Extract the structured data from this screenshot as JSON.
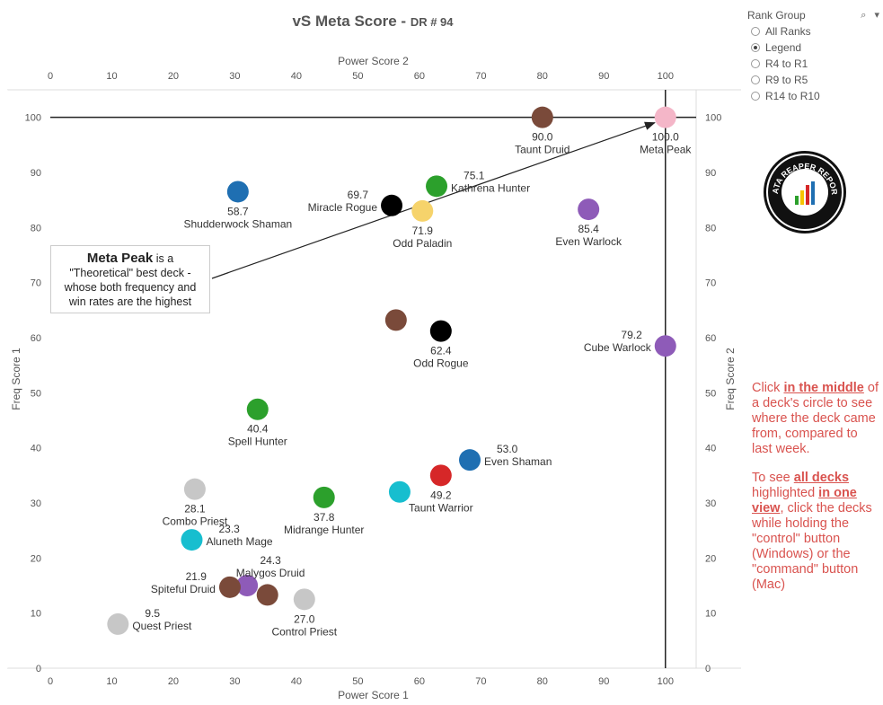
{
  "title": {
    "main": "vS Meta Score",
    "sub": "DR # 94"
  },
  "legend": {
    "title": "Rank Group",
    "tools": "⌕ ▾",
    "items": [
      {
        "label": "All Ranks",
        "selected": false
      },
      {
        "label": "Legend",
        "selected": true
      },
      {
        "label": "R4 to R1",
        "selected": false
      },
      {
        "label": "R9 to R5",
        "selected": false
      },
      {
        "label": "R14 to R10",
        "selected": false
      }
    ]
  },
  "callout": {
    "bold": "Meta Peak",
    "rest1": " is a",
    "rest2": "\"Theoretical\" best deck -",
    "rest3": "whose both frequency and",
    "rest4": "win rates are the highest"
  },
  "note": {
    "p1_a": "Click ",
    "p1_b": "in the middle",
    "p1_c": " of a deck's circle to see where the deck came from, compared to last week.",
    "p2_a": "To see ",
    "p2_b": "all decks ",
    "p2_c": " highlighted ",
    "p2_d": "in one view",
    "p2_e": ", click the decks while holding the \"control\" button (Windows) or the \"command\" button (Mac)"
  },
  "logo": {
    "text": "DATA REAPER REPORT"
  },
  "chart_data": {
    "type": "scatter",
    "x_bottom_label": "Power Score 1",
    "x_top_label": "Power Score 2",
    "y_left_label": "Freq Score 1",
    "y_right_label": "Freq Score 2",
    "xlim": [
      0,
      105
    ],
    "ylim": [
      0,
      105
    ],
    "xticks": [
      0,
      10,
      20,
      30,
      40,
      50,
      60,
      70,
      80,
      90,
      100
    ],
    "yticks": [
      0,
      10,
      20,
      30,
      40,
      50,
      60,
      70,
      80,
      90,
      100
    ],
    "reference_lines": {
      "x": 100,
      "y": 100
    },
    "points": [
      {
        "name": "Taunt Druid",
        "value": "90.0",
        "x": 80,
        "y": 100,
        "color": "#7a4a3a",
        "label_pos": "below"
      },
      {
        "name": "Meta Peak",
        "value": "100.0",
        "x": 100,
        "y": 100,
        "color": "#f4b6c8",
        "label_pos": "below"
      },
      {
        "name": "Shudderwock Shaman",
        "value": "58.7",
        "x": 30.5,
        "y": 86.5,
        "color": "#1f6fb2",
        "label_pos": "below"
      },
      {
        "name": "Kathrena Hunter",
        "value": "75.1",
        "x": 62.8,
        "y": 87.5,
        "color": "#2ca02c",
        "label_pos": "right"
      },
      {
        "name": "Miracle Rogue",
        "value": "69.7",
        "x": 55.5,
        "y": 84,
        "color": "#000000",
        "label_pos": "left"
      },
      {
        "name": "Odd Paladin",
        "value": "71.9",
        "x": 60.5,
        "y": 83,
        "color": "#f6d36b",
        "label_pos": "below"
      },
      {
        "name": "Even Warlock",
        "value": "85.4",
        "x": 87.5,
        "y": 83.3,
        "color": "#8e5bb8",
        "label_pos": "below"
      },
      {
        "name": "",
        "value": "",
        "x": 56.2,
        "y": 63.2,
        "color": "#7a4a3a",
        "label_pos": "none"
      },
      {
        "name": "Odd Rogue",
        "value": "62.4",
        "x": 63.5,
        "y": 61.2,
        "color": "#000000",
        "label_pos": "below"
      },
      {
        "name": "Cube Warlock",
        "value": "79.2",
        "x": 100,
        "y": 58.5,
        "color": "#8e5bb8",
        "label_pos": "left"
      },
      {
        "name": "Spell Hunter",
        "value": "40.4",
        "x": 33.7,
        "y": 47,
        "color": "#2ca02c",
        "label_pos": "below"
      },
      {
        "name": "Even Shaman",
        "value": "53.0",
        "x": 68.2,
        "y": 37.8,
        "color": "#1f6fb2",
        "label_pos": "right"
      },
      {
        "name": "Taunt Warrior",
        "value": "49.2",
        "x": 63.5,
        "y": 35,
        "color": "#d62728",
        "label_pos": "below"
      },
      {
        "name": "",
        "value": "",
        "x": 56.8,
        "y": 32,
        "color": "#17becf",
        "label_pos": "none"
      },
      {
        "name": "Midrange Hunter",
        "value": "37.8",
        "x": 44.5,
        "y": 31,
        "color": "#2ca02c",
        "label_pos": "below"
      },
      {
        "name": "Combo Priest",
        "value": "28.1",
        "x": 23.5,
        "y": 32.5,
        "color": "#c7c7c7",
        "label_pos": "below"
      },
      {
        "name": "Aluneth Mage",
        "value": "23.3",
        "x": 23,
        "y": 23.3,
        "color": "#17becf",
        "label_pos": "right"
      },
      {
        "name": "Malygos Druid",
        "value": "24.3",
        "x": 32,
        "y": 15,
        "color": "#8e5bb8",
        "label_pos": "above"
      },
      {
        "name": "Spiteful Druid",
        "value": "21.9",
        "x": 29.2,
        "y": 14.7,
        "color": "#7a4a3a",
        "label_pos": "left"
      },
      {
        "name": "",
        "value": "",
        "x": 35.3,
        "y": 13.3,
        "color": "#7a4a3a",
        "label_pos": "none"
      },
      {
        "name": "Control Priest",
        "value": "27.0",
        "x": 41.3,
        "y": 12.5,
        "color": "#c7c7c7",
        "label_pos": "below"
      },
      {
        "name": "Quest Priest",
        "value": "9.5",
        "x": 11,
        "y": 8,
        "color": "#c7c7c7",
        "label_pos": "right"
      }
    ]
  }
}
